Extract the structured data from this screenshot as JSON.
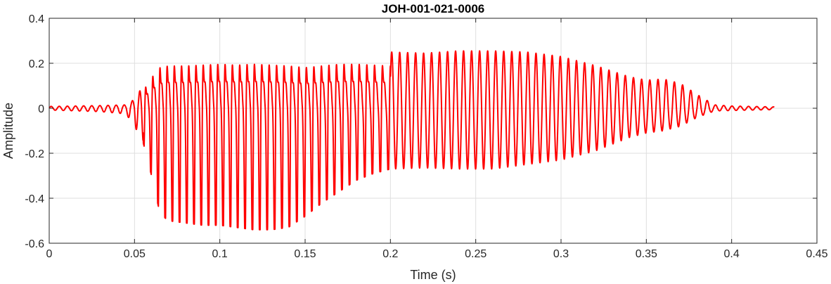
{
  "chart_data": {
    "type": "line",
    "title": "JOH-001-021-0006",
    "xlabel": "Time (s)",
    "ylabel": "Amplitude",
    "xlim": [
      0,
      0.45
    ],
    "ylim": [
      -0.6,
      0.4
    ],
    "grid": true,
    "xticks": [
      0,
      0.05,
      0.1,
      0.15,
      0.2,
      0.25,
      0.3,
      0.35,
      0.4,
      0.45
    ],
    "xtick_labels": [
      "0",
      "0.05",
      "0.1",
      "0.15",
      "0.2",
      "0.25",
      "0.3",
      "0.35",
      "0.4",
      "0.45"
    ],
    "yticks": [
      -0.6,
      -0.4,
      -0.2,
      0,
      0.2,
      0.4
    ],
    "ytick_labels": [
      "-0.6",
      "-0.4",
      "-0.2",
      "0",
      "0.2",
      "0.4"
    ],
    "series": [
      {
        "color": "#ff0000",
        "duration": 0.425,
        "envelope": [
          [
            0.0,
            0.008,
            0.008
          ],
          [
            0.03,
            0.012,
            0.015
          ],
          [
            0.045,
            0.015,
            0.025
          ],
          [
            0.05,
            0.04,
            0.08
          ],
          [
            0.055,
            0.1,
            0.15
          ],
          [
            0.06,
            0.18,
            0.3
          ],
          [
            0.065,
            0.24,
            0.47
          ],
          [
            0.07,
            0.25,
            0.5
          ],
          [
            0.08,
            0.25,
            0.51
          ],
          [
            0.09,
            0.255,
            0.52
          ],
          [
            0.1,
            0.26,
            0.52
          ],
          [
            0.11,
            0.255,
            0.53
          ],
          [
            0.12,
            0.26,
            0.54
          ],
          [
            0.13,
            0.255,
            0.54
          ],
          [
            0.14,
            0.25,
            0.53
          ],
          [
            0.15,
            0.24,
            0.48
          ],
          [
            0.16,
            0.25,
            0.42
          ],
          [
            0.17,
            0.26,
            0.37
          ],
          [
            0.18,
            0.26,
            0.32
          ],
          [
            0.19,
            0.255,
            0.29
          ],
          [
            0.2,
            0.25,
            0.27
          ],
          [
            0.22,
            0.245,
            0.265
          ],
          [
            0.24,
            0.255,
            0.27
          ],
          [
            0.26,
            0.255,
            0.27
          ],
          [
            0.28,
            0.25,
            0.25
          ],
          [
            0.3,
            0.23,
            0.23
          ],
          [
            0.32,
            0.19,
            0.19
          ],
          [
            0.34,
            0.14,
            0.13
          ],
          [
            0.35,
            0.125,
            0.11
          ],
          [
            0.36,
            0.13,
            0.1
          ],
          [
            0.37,
            0.11,
            0.08
          ],
          [
            0.38,
            0.06,
            0.04
          ],
          [
            0.39,
            0.015,
            0.012
          ],
          [
            0.4,
            0.01,
            0.01
          ],
          [
            0.425,
            0.006,
            0.006
          ]
        ]
      }
    ]
  }
}
